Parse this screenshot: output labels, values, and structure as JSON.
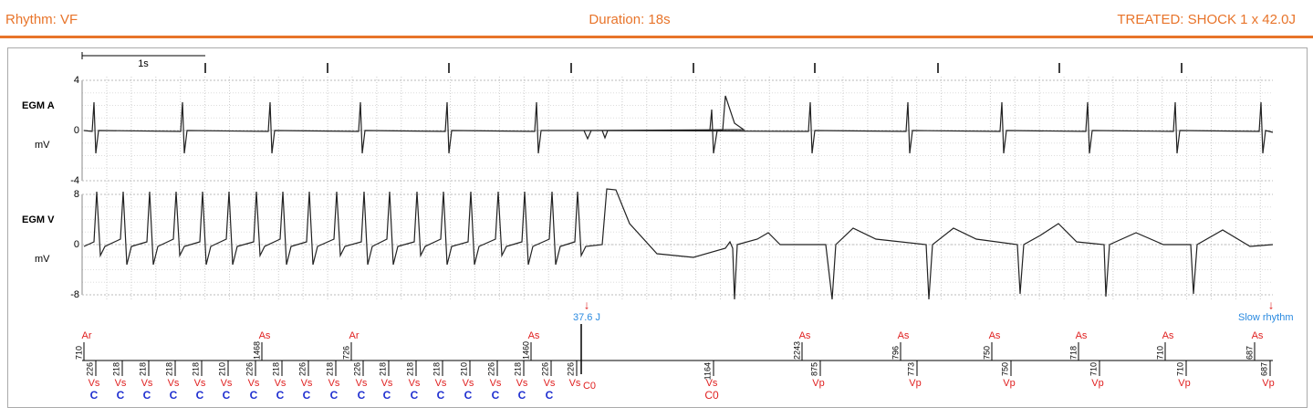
{
  "header": {
    "rhythm": "Rhythm: VF",
    "duration": "Duration: 18s",
    "treated": "TREATED: SHOCK 1 x 42.0J"
  },
  "scale_label": "1s",
  "channels": [
    {
      "name": "EGM A",
      "unit": "mV",
      "yticks": [
        4,
        0,
        -4
      ]
    },
    {
      "name": "EGM V",
      "unit": "mV",
      "yticks": [
        8,
        0,
        -8
      ]
    }
  ],
  "annotations": [
    "37.6 J",
    "Slow rhythm"
  ],
  "atrial_markers": [
    {
      "label": "Ar",
      "interval": 710
    },
    {
      "label": "As",
      "interval": 1468
    },
    {
      "label": "Ar",
      "interval": 726
    },
    {
      "label": "As",
      "interval": 1460
    },
    {
      "label": "As",
      "interval": 2243
    },
    {
      "label": "As",
      "interval": 796
    },
    {
      "label": "As",
      "interval": 750
    },
    {
      "label": "As",
      "interval": 718
    },
    {
      "label": "As",
      "interval": 710
    },
    {
      "label": "As",
      "interval": 687
    }
  ],
  "ventricular_markers": [
    {
      "interval": 226,
      "label": "Vs",
      "sub": "C"
    },
    {
      "interval": 218,
      "label": "Vs",
      "sub": "C"
    },
    {
      "interval": 218,
      "label": "Vs",
      "sub": "C"
    },
    {
      "interval": 218,
      "label": "Vs",
      "sub": "C"
    },
    {
      "interval": 218,
      "label": "Vs",
      "sub": "C"
    },
    {
      "interval": 210,
      "label": "Vs",
      "sub": "C"
    },
    {
      "interval": 226,
      "label": "Vs",
      "sub": "C"
    },
    {
      "interval": 218,
      "label": "Vs",
      "sub": "C"
    },
    {
      "interval": 226,
      "label": "Vs",
      "sub": "C"
    },
    {
      "interval": 218,
      "label": "Vs",
      "sub": "C"
    },
    {
      "interval": 226,
      "label": "Vs",
      "sub": "C"
    },
    {
      "interval": 218,
      "label": "Vs",
      "sub": "C"
    },
    {
      "interval": 218,
      "label": "Vs",
      "sub": "C"
    },
    {
      "interval": 218,
      "label": "Vs",
      "sub": "C"
    },
    {
      "interval": 210,
      "label": "Vs",
      "sub": "C"
    },
    {
      "interval": 226,
      "label": "Vs",
      "sub": "C"
    },
    {
      "interval": 218,
      "label": "Vs",
      "sub": "C"
    },
    {
      "interval": 226,
      "label": "Vs",
      "sub": "C"
    },
    {
      "interval": 226,
      "label": "Vs"
    },
    {
      "label": "C0"
    },
    {
      "interval": 1164,
      "label": "Vs",
      "sub": "C0"
    },
    {
      "interval": 875,
      "label": "Vp"
    },
    {
      "interval": 773,
      "label": "Vp"
    },
    {
      "interval": 750,
      "label": "Vp"
    },
    {
      "interval": 710,
      "label": "Vp"
    },
    {
      "interval": 710,
      "label": "Vp"
    },
    {
      "interval": 687,
      "label": "Vp"
    }
  ]
}
